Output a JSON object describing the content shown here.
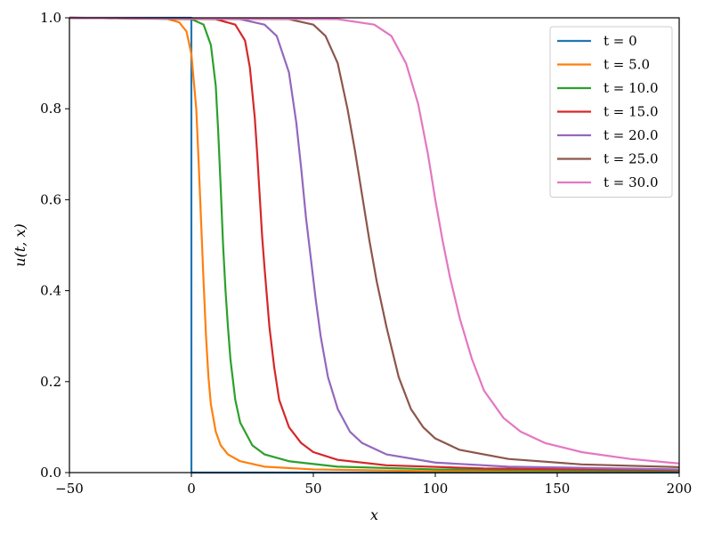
{
  "chart_data": {
    "type": "line",
    "xlabel": "x",
    "ylabel": "u(t, x)",
    "xlim": [
      -50,
      200
    ],
    "ylim": [
      0,
      1.0
    ],
    "xticks": [
      -50,
      0,
      50,
      100,
      150,
      200
    ],
    "xtick_labels": [
      "−50",
      "0",
      "50",
      "100",
      "150",
      "200"
    ],
    "yticks": [
      0,
      0.2,
      0.4,
      0.6,
      0.8,
      1.0
    ],
    "ytick_labels": [
      "0.0",
      "0.2",
      "0.4",
      "0.6",
      "0.8",
      "1.0"
    ],
    "legend_position": "top-right",
    "grid": false,
    "series": [
      {
        "name": "t = 0",
        "color": "#1f77b4",
        "x": [
          -50,
          -0.01,
          0.01,
          200
        ],
        "y": [
          1.0,
          1.0,
          0.0,
          0.0
        ]
      },
      {
        "name": "t = 5.0",
        "color": "#ff7f0e",
        "x": [
          -50,
          -10,
          -5,
          -2,
          0,
          2,
          3,
          4,
          5,
          6,
          7,
          8,
          10,
          12,
          15,
          20,
          30,
          50,
          100,
          200
        ],
        "y": [
          1.0,
          0.998,
          0.99,
          0.97,
          0.92,
          0.8,
          0.68,
          0.55,
          0.42,
          0.3,
          0.21,
          0.15,
          0.09,
          0.06,
          0.04,
          0.025,
          0.013,
          0.007,
          0.003,
          0.001
        ]
      },
      {
        "name": "t = 10.0",
        "color": "#2ca02c",
        "x": [
          -50,
          0,
          5,
          8,
          10,
          11,
          12,
          13,
          14,
          15,
          16,
          18,
          20,
          25,
          30,
          40,
          60,
          100,
          200
        ],
        "y": [
          1.0,
          0.997,
          0.985,
          0.94,
          0.85,
          0.75,
          0.63,
          0.5,
          0.4,
          0.32,
          0.25,
          0.16,
          0.11,
          0.06,
          0.04,
          0.025,
          0.013,
          0.007,
          0.003
        ]
      },
      {
        "name": "t = 15.0",
        "color": "#d62728",
        "x": [
          -50,
          10,
          18,
          22,
          24,
          26,
          27,
          28,
          29,
          30,
          32,
          34,
          36,
          40,
          45,
          50,
          60,
          80,
          120,
          200
        ],
        "y": [
          1.0,
          0.997,
          0.985,
          0.95,
          0.89,
          0.78,
          0.7,
          0.61,
          0.52,
          0.45,
          0.32,
          0.23,
          0.16,
          0.1,
          0.065,
          0.045,
          0.028,
          0.016,
          0.009,
          0.005
        ]
      },
      {
        "name": "t = 20.0",
        "color": "#9467bd",
        "x": [
          -50,
          20,
          30,
          35,
          40,
          43,
          45,
          47,
          49,
          51,
          53,
          56,
          60,
          65,
          70,
          80,
          100,
          130,
          200
        ],
        "y": [
          1.0,
          0.997,
          0.985,
          0.96,
          0.88,
          0.77,
          0.67,
          0.56,
          0.47,
          0.38,
          0.3,
          0.21,
          0.14,
          0.09,
          0.065,
          0.04,
          0.022,
          0.013,
          0.007
        ]
      },
      {
        "name": "t = 25.0",
        "color": "#8c564b",
        "x": [
          -50,
          40,
          50,
          55,
          60,
          64,
          67,
          70,
          73,
          76,
          80,
          85,
          90,
          95,
          100,
          110,
          130,
          160,
          200
        ],
        "y": [
          1.0,
          0.997,
          0.985,
          0.96,
          0.9,
          0.8,
          0.71,
          0.61,
          0.51,
          0.42,
          0.32,
          0.21,
          0.14,
          0.1,
          0.075,
          0.05,
          0.03,
          0.018,
          0.012
        ]
      },
      {
        "name": "t = 30.0",
        "color": "#e377c2",
        "x": [
          -50,
          60,
          75,
          82,
          88,
          93,
          97,
          100,
          103,
          106,
          110,
          115,
          120,
          128,
          135,
          145,
          160,
          180,
          200
        ],
        "y": [
          1.0,
          0.997,
          0.985,
          0.96,
          0.9,
          0.81,
          0.7,
          0.6,
          0.51,
          0.43,
          0.34,
          0.25,
          0.18,
          0.12,
          0.09,
          0.065,
          0.045,
          0.03,
          0.02
        ]
      }
    ]
  }
}
